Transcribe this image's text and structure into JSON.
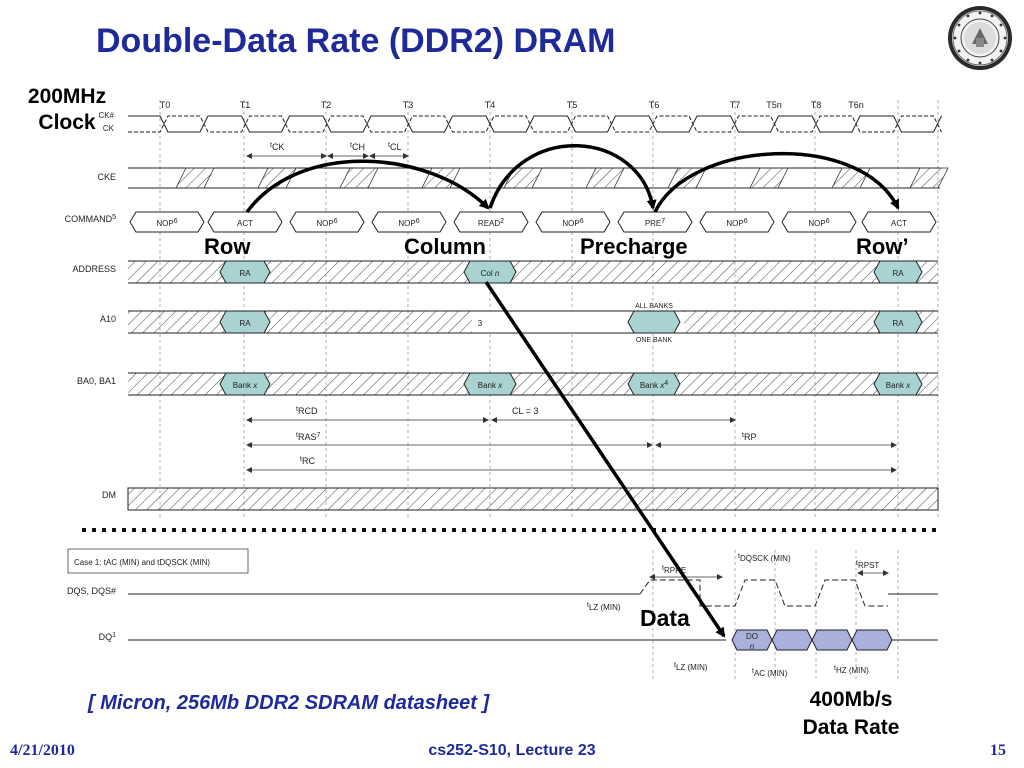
{
  "slide": {
    "title": "Double-Data Rate (DDR2) DRAM",
    "clock_label": "200MHz\nClock",
    "callouts": {
      "row": "Row",
      "column": "Column",
      "precharge": "Precharge",
      "row_again": "Row’",
      "data": "Data"
    },
    "data_rate": "400Mb/s\nData Rate",
    "citation": "[ Micron, 256Mb DDR2 SDRAM datasheet ]",
    "footer": {
      "date": "4/21/2010",
      "course": "cs252-S10, Lecture 23",
      "page": "15"
    },
    "seal_icon": "university-seal-icon",
    "colors": {
      "title": "#1f2a9a",
      "cell_fill": "#a9d2d2",
      "dq_fill": "#aab0dc",
      "hatch": "#555555"
    }
  },
  "timing": {
    "clock_ticks": [
      "T0",
      "T1",
      "T2",
      "T3",
      "T4",
      "T5",
      "T6",
      "T7",
      "T5n",
      "T8",
      "T6n"
    ],
    "signals": [
      "CK#",
      "CK",
      "CKE",
      "COMMAND",
      "ADDRESS",
      "A10",
      "BA0, BA1",
      "DM",
      "DQS, DQS#",
      "DQ"
    ],
    "command_sup": "5",
    "dq_sup": "1",
    "clock_params": [
      "CK",
      "CH",
      "CL"
    ],
    "commands": [
      {
        "label": "NOP",
        "sup": "6"
      },
      {
        "label": "ACT",
        "sup": ""
      },
      {
        "label": "NOP",
        "sup": "6"
      },
      {
        "label": "NOP",
        "sup": "6"
      },
      {
        "label": "READ",
        "sup": "2"
      },
      {
        "label": "NOP",
        "sup": "6"
      },
      {
        "label": "PRE",
        "sup": "7"
      },
      {
        "label": "NOP",
        "sup": "6"
      },
      {
        "label": "NOP",
        "sup": "6"
      },
      {
        "label": "ACT",
        "sup": ""
      }
    ],
    "address_cells": [
      "RA",
      "Col",
      "RA"
    ],
    "address_col_suffix": "n",
    "a10_cells": [
      "RA",
      "RA"
    ],
    "a10_note": "3",
    "all_banks": "ALL BANKS",
    "one_bank": "ONE BANK",
    "bank_cells": [
      "Bank",
      "Bank",
      "Bank",
      "Bank"
    ],
    "bank_suffix": "x",
    "bank_pre_sup": "4",
    "intervals": {
      "rcd": {
        "t": "t",
        "label": "RCD",
        "sup": ""
      },
      "cl": {
        "label": "CL = 3"
      },
      "ras": {
        "t": "t",
        "label": "RAS",
        "sup": "7"
      },
      "rp": {
        "t": "t",
        "label": "RP",
        "sup": ""
      },
      "rc": {
        "t": "t",
        "label": "RC",
        "sup": ""
      }
    },
    "case_box": "Case 1: tAC (MIN) and tDQSCK (MIN)",
    "dqs_params": [
      "RPRE",
      "DQSCK (MIN)",
      "RPST",
      "LZ (MIN)"
    ],
    "dq_params": [
      "LZ (MIN)",
      "AC (MIN)",
      "HZ (MIN)"
    ],
    "dq_cell": {
      "line1": "DO",
      "line2": "n"
    }
  }
}
